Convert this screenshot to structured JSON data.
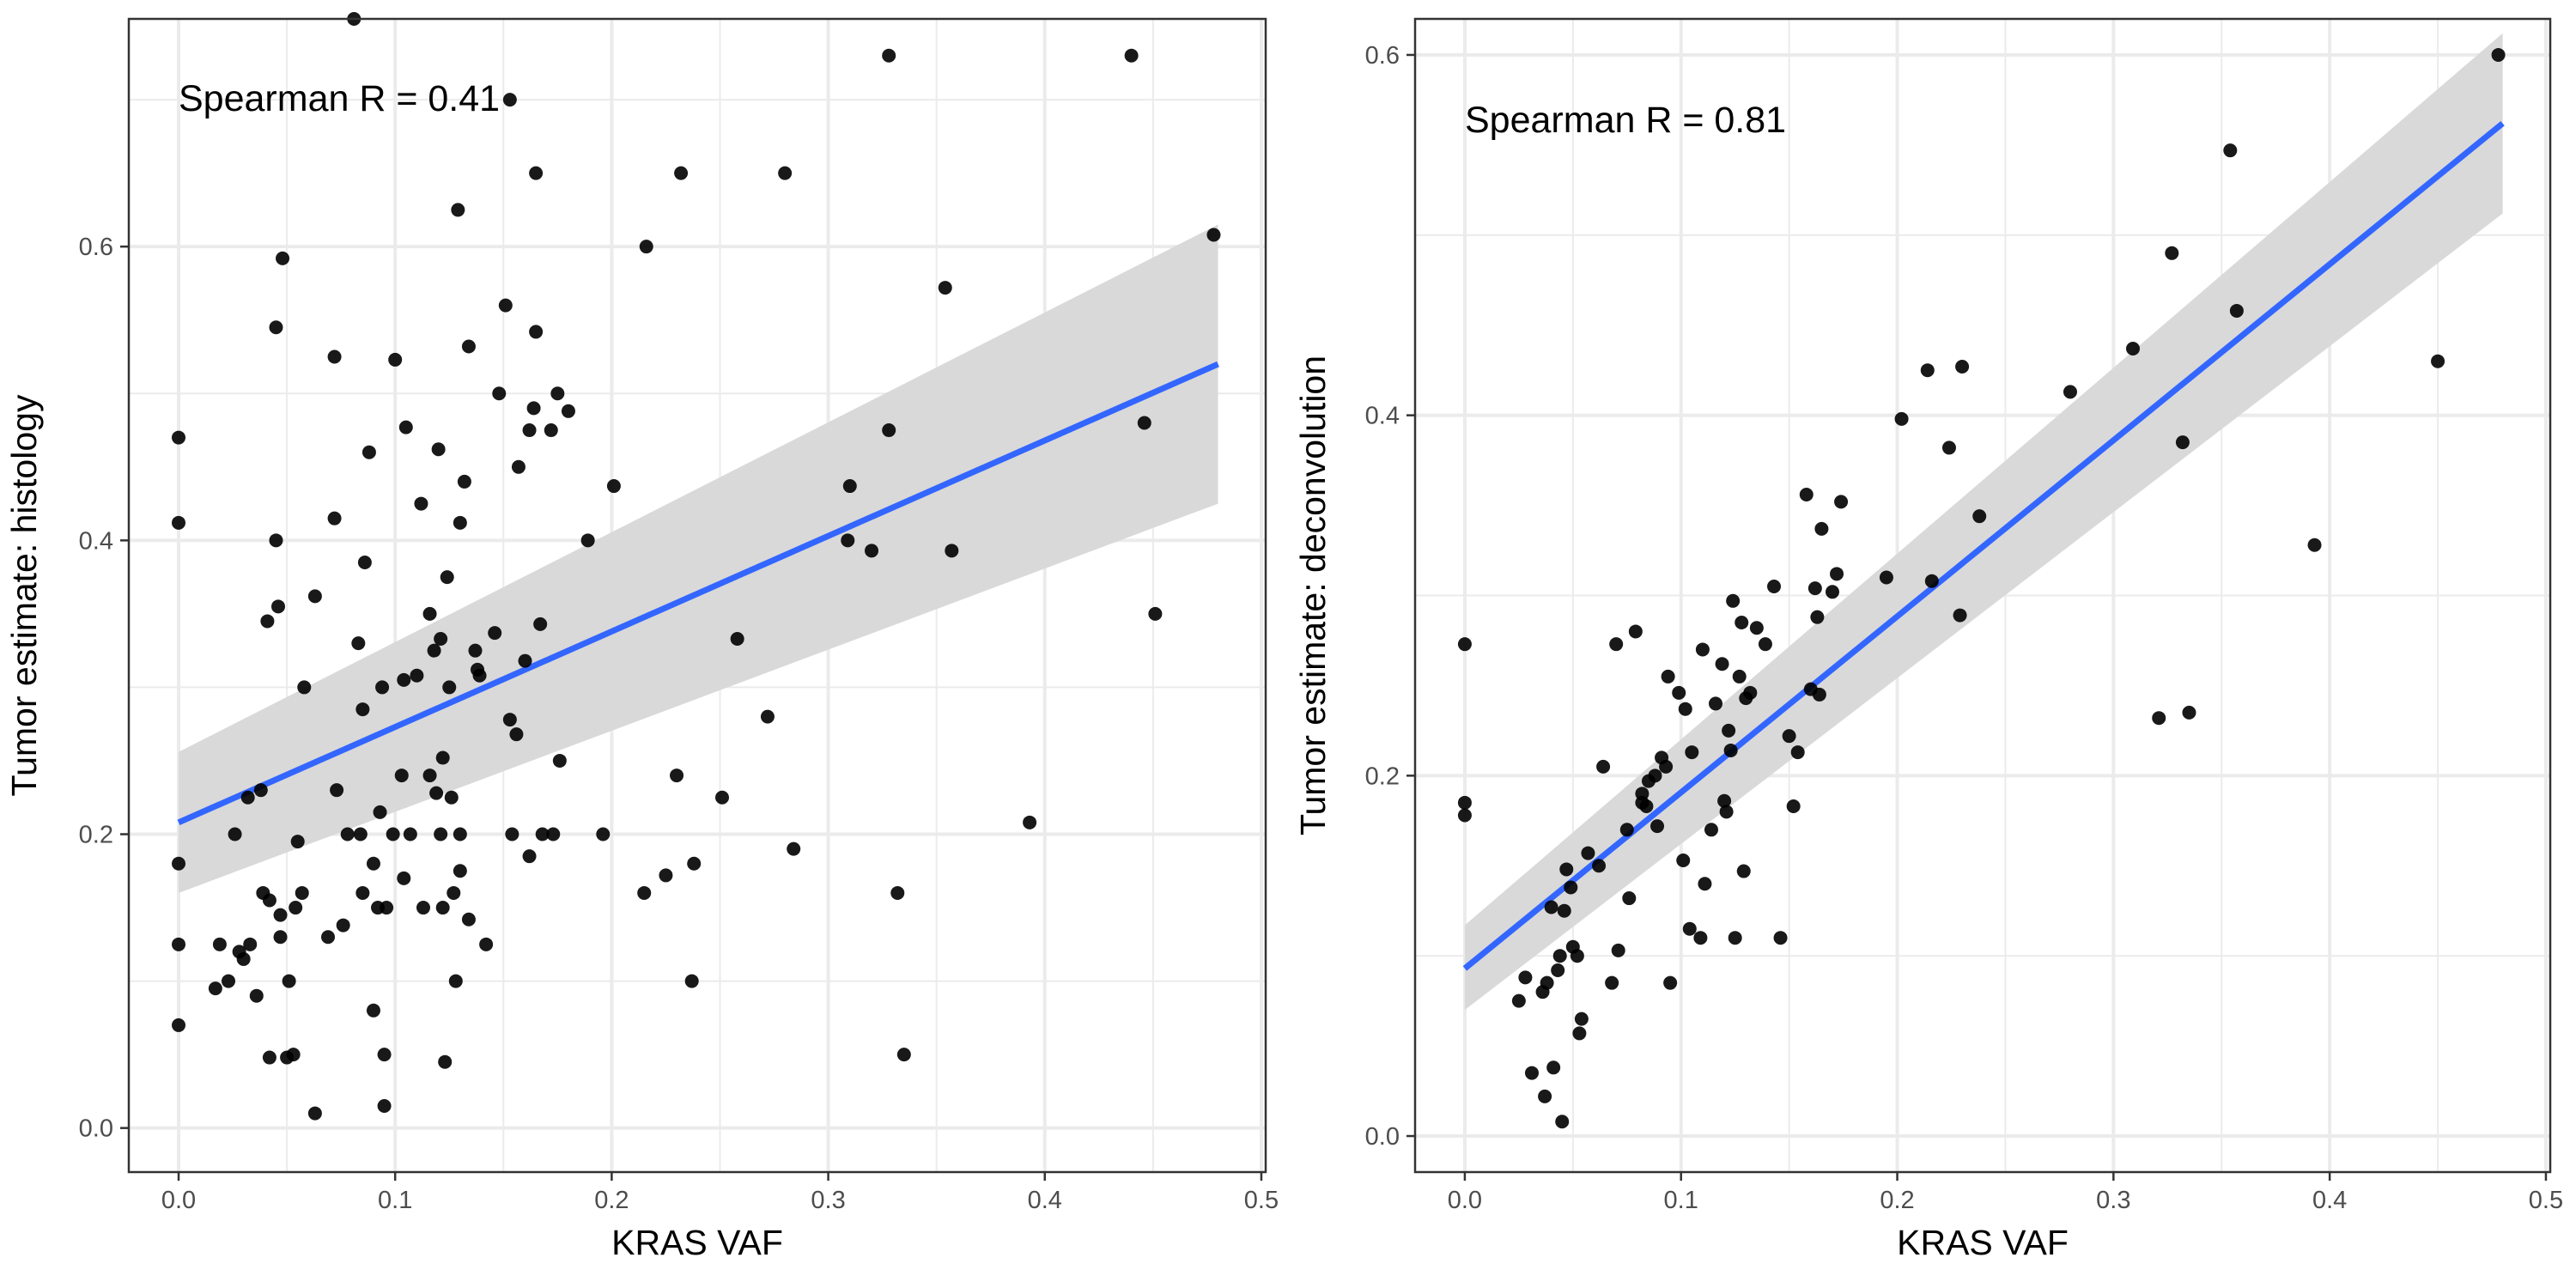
{
  "figure": {
    "background": "#ffffff",
    "grid_color": "#ebebeb",
    "panel_border_color": "#333333",
    "point_color": "#000000",
    "fit_line_color": "#3366ff",
    "ci_band_color": "#d9d9d9"
  },
  "chart_data": [
    {
      "type": "scatter",
      "title": "",
      "annotation": "Spearman R = 0.41",
      "annotation_placement": "top-left",
      "xlabel": "KRAS VAF",
      "ylabel": "Tumor estimate: histology",
      "xlim": [
        -0.023,
        0.502
      ],
      "ylim": [
        -0.03,
        0.755
      ],
      "xticks": [
        0.0,
        0.1,
        0.2,
        0.3,
        0.4,
        0.5
      ],
      "xtick_labels": [
        "0.0",
        "0.1",
        "0.2",
        "0.3",
        "0.4",
        "0.5"
      ],
      "yticks": [
        0.0,
        0.2,
        0.4,
        0.6
      ],
      "ytick_labels": [
        "0.0",
        "0.2",
        "0.4",
        "0.6"
      ],
      "grid": true,
      "legend": "none",
      "fit": {
        "x": [
          0.0,
          0.48
        ],
        "y": [
          0.208,
          0.52
        ],
        "ci_lower": [
          0.16,
          0.425
        ],
        "ci_upper": [
          0.256,
          0.615
        ]
      },
      "points": [
        [
          0.0,
          0.47
        ],
        [
          0.0,
          0.412
        ],
        [
          0.0,
          0.18
        ],
        [
          0.0,
          0.125
        ],
        [
          0.0,
          0.07
        ],
        [
          0.017,
          0.095
        ],
        [
          0.019,
          0.125
        ],
        [
          0.023,
          0.1
        ],
        [
          0.026,
          0.2
        ],
        [
          0.028,
          0.12
        ],
        [
          0.03,
          0.115
        ],
        [
          0.032,
          0.225
        ],
        [
          0.033,
          0.125
        ],
        [
          0.036,
          0.09
        ],
        [
          0.038,
          0.23
        ],
        [
          0.039,
          0.16
        ],
        [
          0.041,
          0.345
        ],
        [
          0.042,
          0.155
        ],
        [
          0.042,
          0.048
        ],
        [
          0.045,
          0.545
        ],
        [
          0.045,
          0.4
        ],
        [
          0.046,
          0.355
        ],
        [
          0.047,
          0.145
        ],
        [
          0.047,
          0.13
        ],
        [
          0.048,
          0.592
        ],
        [
          0.05,
          0.048
        ],
        [
          0.051,
          0.1
        ],
        [
          0.053,
          0.05
        ],
        [
          0.054,
          0.15
        ],
        [
          0.055,
          0.195
        ],
        [
          0.057,
          0.16
        ],
        [
          0.058,
          0.3
        ],
        [
          0.063,
          0.362
        ],
        [
          0.063,
          0.01
        ],
        [
          0.069,
          0.13
        ],
        [
          0.072,
          0.525
        ],
        [
          0.072,
          0.415
        ],
        [
          0.073,
          0.23
        ],
        [
          0.076,
          0.138
        ],
        [
          0.078,
          0.2
        ],
        [
          0.081,
          0.755
        ],
        [
          0.083,
          0.33
        ],
        [
          0.084,
          0.2
        ],
        [
          0.085,
          0.285
        ],
        [
          0.085,
          0.16
        ],
        [
          0.086,
          0.385
        ],
        [
          0.088,
          0.46
        ],
        [
          0.09,
          0.08
        ],
        [
          0.09,
          0.18
        ],
        [
          0.092,
          0.15
        ],
        [
          0.093,
          0.215
        ],
        [
          0.094,
          0.3
        ],
        [
          0.095,
          0.05
        ],
        [
          0.095,
          0.015
        ],
        [
          0.096,
          0.15
        ],
        [
          0.099,
          0.2
        ],
        [
          0.1,
          0.523
        ],
        [
          0.103,
          0.24
        ],
        [
          0.104,
          0.305
        ],
        [
          0.104,
          0.17
        ],
        [
          0.105,
          0.477
        ],
        [
          0.107,
          0.2
        ],
        [
          0.11,
          0.308
        ],
        [
          0.112,
          0.425
        ],
        [
          0.113,
          0.15
        ],
        [
          0.116,
          0.35
        ],
        [
          0.116,
          0.24
        ],
        [
          0.118,
          0.325
        ],
        [
          0.119,
          0.228
        ],
        [
          0.12,
          0.462
        ],
        [
          0.121,
          0.2
        ],
        [
          0.121,
          0.333
        ],
        [
          0.122,
          0.252
        ],
        [
          0.122,
          0.15
        ],
        [
          0.123,
          0.045
        ],
        [
          0.124,
          0.375
        ],
        [
          0.125,
          0.3
        ],
        [
          0.126,
          0.225
        ],
        [
          0.127,
          0.16
        ],
        [
          0.128,
          0.1
        ],
        [
          0.129,
          0.625
        ],
        [
          0.13,
          0.412
        ],
        [
          0.13,
          0.2
        ],
        [
          0.13,
          0.175
        ],
        [
          0.132,
          0.44
        ],
        [
          0.134,
          0.532
        ],
        [
          0.134,
          0.142
        ],
        [
          0.137,
          0.325
        ],
        [
          0.138,
          0.312
        ],
        [
          0.139,
          0.308
        ],
        [
          0.142,
          0.125
        ],
        [
          0.146,
          0.337
        ],
        [
          0.148,
          0.5
        ],
        [
          0.151,
          0.56
        ],
        [
          0.153,
          0.7
        ],
        [
          0.153,
          0.278
        ],
        [
          0.154,
          0.2
        ],
        [
          0.156,
          0.268
        ],
        [
          0.157,
          0.45
        ],
        [
          0.16,
          0.318
        ],
        [
          0.162,
          0.475
        ],
        [
          0.162,
          0.185
        ],
        [
          0.164,
          0.49
        ],
        [
          0.165,
          0.65
        ],
        [
          0.165,
          0.542
        ],
        [
          0.167,
          0.343
        ],
        [
          0.168,
          0.2
        ],
        [
          0.172,
          0.475
        ],
        [
          0.173,
          0.2
        ],
        [
          0.175,
          0.5
        ],
        [
          0.176,
          0.25
        ],
        [
          0.18,
          0.488
        ],
        [
          0.189,
          0.4
        ],
        [
          0.196,
          0.2
        ],
        [
          0.201,
          0.437
        ],
        [
          0.215,
          0.16
        ],
        [
          0.216,
          0.6
        ],
        [
          0.225,
          0.172
        ],
        [
          0.23,
          0.24
        ],
        [
          0.232,
          0.65
        ],
        [
          0.237,
          0.1
        ],
        [
          0.238,
          0.18
        ],
        [
          0.251,
          0.225
        ],
        [
          0.258,
          0.333
        ],
        [
          0.272,
          0.28
        ],
        [
          0.28,
          0.65
        ],
        [
          0.284,
          0.19
        ],
        [
          0.309,
          0.4
        ],
        [
          0.31,
          0.437
        ],
        [
          0.32,
          0.393
        ],
        [
          0.328,
          0.73
        ],
        [
          0.328,
          0.475
        ],
        [
          0.332,
          0.16
        ],
        [
          0.335,
          0.05
        ],
        [
          0.354,
          0.572
        ],
        [
          0.357,
          0.393
        ],
        [
          0.393,
          0.208
        ],
        [
          0.44,
          0.73
        ],
        [
          0.446,
          0.48
        ],
        [
          0.451,
          0.35
        ],
        [
          0.478,
          0.608
        ]
      ]
    },
    {
      "type": "scatter",
      "title": "",
      "annotation": "Spearman R = 0.81",
      "annotation_placement": "top-left",
      "xlabel": "KRAS VAF",
      "ylabel": "Tumor estimate: deconvolution",
      "xlim": [
        -0.023,
        0.502
      ],
      "ylim": [
        -0.02,
        0.62
      ],
      "xticks": [
        0.0,
        0.1,
        0.2,
        0.3,
        0.4,
        0.5
      ],
      "xtick_labels": [
        "0.0",
        "0.1",
        "0.2",
        "0.3",
        "0.4",
        "0.5"
      ],
      "yticks": [
        0.0,
        0.2,
        0.4,
        0.6
      ],
      "ytick_labels": [
        "0.0",
        "0.2",
        "0.4",
        "0.6"
      ],
      "grid": true,
      "legend": "none",
      "fit": {
        "x": [
          0.0,
          0.48
        ],
        "y": [
          0.093,
          0.562
        ],
        "ci_lower": [
          0.07,
          0.512
        ],
        "ci_upper": [
          0.117,
          0.612
        ]
      },
      "points": [
        [
          0.0,
          0.273
        ],
        [
          0.0,
          0.185
        ],
        [
          0.0,
          0.178
        ],
        [
          0.025,
          0.075
        ],
        [
          0.028,
          0.088
        ],
        [
          0.031,
          0.035
        ],
        [
          0.036,
          0.08
        ],
        [
          0.037,
          0.022
        ],
        [
          0.038,
          0.085
        ],
        [
          0.04,
          0.127
        ],
        [
          0.041,
          0.038
        ],
        [
          0.043,
          0.092
        ],
        [
          0.044,
          0.1
        ],
        [
          0.045,
          0.008
        ],
        [
          0.046,
          0.125
        ],
        [
          0.047,
          0.148
        ],
        [
          0.049,
          0.138
        ],
        [
          0.05,
          0.105
        ],
        [
          0.052,
          0.1
        ],
        [
          0.053,
          0.057
        ],
        [
          0.054,
          0.065
        ],
        [
          0.057,
          0.157
        ],
        [
          0.062,
          0.15
        ],
        [
          0.064,
          0.205
        ],
        [
          0.068,
          0.085
        ],
        [
          0.07,
          0.273
        ],
        [
          0.071,
          0.103
        ],
        [
          0.075,
          0.17
        ],
        [
          0.076,
          0.132
        ],
        [
          0.079,
          0.28
        ],
        [
          0.082,
          0.19
        ],
        [
          0.082,
          0.185
        ],
        [
          0.084,
          0.183
        ],
        [
          0.085,
          0.197
        ],
        [
          0.088,
          0.2
        ],
        [
          0.089,
          0.172
        ],
        [
          0.091,
          0.21
        ],
        [
          0.093,
          0.205
        ],
        [
          0.094,
          0.255
        ],
        [
          0.095,
          0.085
        ],
        [
          0.099,
          0.246
        ],
        [
          0.101,
          0.153
        ],
        [
          0.102,
          0.237
        ],
        [
          0.104,
          0.115
        ],
        [
          0.105,
          0.213
        ],
        [
          0.109,
          0.11
        ],
        [
          0.11,
          0.27
        ],
        [
          0.111,
          0.14
        ],
        [
          0.114,
          0.17
        ],
        [
          0.116,
          0.24
        ],
        [
          0.119,
          0.262
        ],
        [
          0.12,
          0.186
        ],
        [
          0.121,
          0.18
        ],
        [
          0.122,
          0.225
        ],
        [
          0.123,
          0.214
        ],
        [
          0.124,
          0.297
        ],
        [
          0.125,
          0.11
        ],
        [
          0.127,
          0.255
        ],
        [
          0.128,
          0.285
        ],
        [
          0.129,
          0.147
        ],
        [
          0.13,
          0.243
        ],
        [
          0.132,
          0.246
        ],
        [
          0.135,
          0.282
        ],
        [
          0.139,
          0.273
        ],
        [
          0.143,
          0.305
        ],
        [
          0.146,
          0.11
        ],
        [
          0.15,
          0.222
        ],
        [
          0.152,
          0.183
        ],
        [
          0.154,
          0.213
        ],
        [
          0.158,
          0.356
        ],
        [
          0.16,
          0.248
        ],
        [
          0.162,
          0.304
        ],
        [
          0.163,
          0.288
        ],
        [
          0.164,
          0.245
        ],
        [
          0.165,
          0.337
        ],
        [
          0.17,
          0.302
        ],
        [
          0.172,
          0.312
        ],
        [
          0.174,
          0.352
        ],
        [
          0.195,
          0.31
        ],
        [
          0.202,
          0.398
        ],
        [
          0.214,
          0.425
        ],
        [
          0.216,
          0.308
        ],
        [
          0.224,
          0.382
        ],
        [
          0.229,
          0.289
        ],
        [
          0.23,
          0.427
        ],
        [
          0.238,
          0.344
        ],
        [
          0.28,
          0.413
        ],
        [
          0.309,
          0.437
        ],
        [
          0.321,
          0.232
        ],
        [
          0.327,
          0.49
        ],
        [
          0.332,
          0.385
        ],
        [
          0.335,
          0.235
        ],
        [
          0.354,
          0.547
        ],
        [
          0.357,
          0.458
        ],
        [
          0.393,
          0.328
        ],
        [
          0.45,
          0.43
        ],
        [
          0.478,
          0.6
        ]
      ]
    }
  ]
}
